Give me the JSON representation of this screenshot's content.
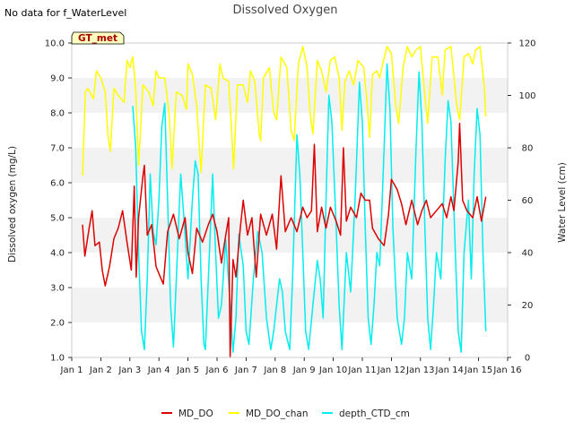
{
  "no_data_note": "No data for f_WaterLevel",
  "chart_data": {
    "type": "line",
    "title": "Dissolved Oxygen",
    "ylabel": "Dissolved oxygen (mg/L)",
    "y2label": "Water Level (cm)",
    "annotation": "GT_met",
    "xlim": [
      "Jan 1",
      "Jan 16"
    ],
    "x_ticks": [
      "Jan 1",
      "Jan 2",
      "Jan 3",
      "Jan 4",
      "Jan 5",
      "Jan 6",
      "Jan 7",
      "Jan 8",
      "Jan 9",
      "Jan 10",
      "Jan 11",
      "Jan 12",
      "Jan 13",
      "Jan 14",
      "Jan 15",
      "Jan 16"
    ],
    "ylim": [
      1.0,
      10.0
    ],
    "y_ticks": [
      "1.0",
      "2.0",
      "3.0",
      "4.0",
      "5.0",
      "6.0",
      "7.0",
      "8.0",
      "9.0",
      "10.0"
    ],
    "y2lim": [
      0,
      120
    ],
    "y2_ticks": [
      "0",
      "20",
      "40",
      "60",
      "80",
      "100",
      "120"
    ],
    "grid": "horizontal bands",
    "legend_position": "bottom",
    "colors": {
      "MD_DO": "#dd0000",
      "MD_DO_chan": "#ffff00",
      "depth_CTD_cm": "#00eeee"
    },
    "series": [
      {
        "name": "MD_DO",
        "axis": "left",
        "points": [
          [
            1.37,
            4.8
          ],
          [
            1.45,
            3.9
          ],
          [
            1.6,
            4.7
          ],
          [
            1.7,
            5.2
          ],
          [
            1.8,
            4.2
          ],
          [
            1.95,
            4.3
          ],
          [
            2.05,
            3.5
          ],
          [
            2.15,
            3.05
          ],
          [
            2.3,
            3.6
          ],
          [
            2.45,
            4.4
          ],
          [
            2.6,
            4.7
          ],
          [
            2.75,
            5.2
          ],
          [
            2.9,
            4.3
          ],
          [
            3.05,
            3.5
          ],
          [
            3.15,
            5.9
          ],
          [
            3.22,
            3.3
          ],
          [
            3.3,
            5.0
          ],
          [
            3.45,
            6.2
          ],
          [
            3.5,
            6.5
          ],
          [
            3.6,
            4.5
          ],
          [
            3.75,
            4.8
          ],
          [
            3.9,
            3.6
          ],
          [
            4.05,
            3.3
          ],
          [
            4.15,
            3.1
          ],
          [
            4.3,
            4.6
          ],
          [
            4.5,
            5.1
          ],
          [
            4.7,
            4.4
          ],
          [
            4.9,
            5.0
          ],
          [
            5.0,
            4.0
          ],
          [
            5.15,
            3.4
          ],
          [
            5.3,
            4.7
          ],
          [
            5.5,
            4.3
          ],
          [
            5.7,
            4.8
          ],
          [
            5.85,
            5.1
          ],
          [
            6.0,
            4.6
          ],
          [
            6.15,
            3.7
          ],
          [
            6.3,
            4.5
          ],
          [
            6.4,
            5.0
          ],
          [
            6.45,
            1.0
          ],
          [
            6.55,
            3.8
          ],
          [
            6.65,
            3.3
          ],
          [
            6.8,
            4.7
          ],
          [
            6.9,
            5.5
          ],
          [
            7.05,
            4.5
          ],
          [
            7.2,
            5.0
          ],
          [
            7.35,
            3.3
          ],
          [
            7.5,
            5.1
          ],
          [
            7.7,
            4.5
          ],
          [
            7.9,
            5.1
          ],
          [
            8.05,
            4.1
          ],
          [
            8.2,
            6.2
          ],
          [
            8.35,
            4.6
          ],
          [
            8.55,
            5.0
          ],
          [
            8.75,
            4.6
          ],
          [
            8.95,
            5.3
          ],
          [
            9.1,
            5.0
          ],
          [
            9.25,
            5.2
          ],
          [
            9.35,
            7.1
          ],
          [
            9.45,
            4.6
          ],
          [
            9.6,
            5.3
          ],
          [
            9.75,
            4.7
          ],
          [
            9.9,
            5.3
          ],
          [
            10.1,
            4.9
          ],
          [
            10.25,
            4.5
          ],
          [
            10.35,
            7.0
          ],
          [
            10.45,
            4.9
          ],
          [
            10.6,
            5.3
          ],
          [
            10.8,
            5.0
          ],
          [
            10.95,
            5.7
          ],
          [
            11.1,
            5.5
          ],
          [
            11.25,
            5.5
          ],
          [
            11.35,
            4.7
          ],
          [
            11.55,
            4.4
          ],
          [
            11.75,
            4.2
          ],
          [
            11.9,
            5.1
          ],
          [
            12.0,
            6.1
          ],
          [
            12.2,
            5.8
          ],
          [
            12.35,
            5.4
          ],
          [
            12.5,
            4.8
          ],
          [
            12.7,
            5.5
          ],
          [
            12.9,
            4.8
          ],
          [
            13.05,
            5.2
          ],
          [
            13.2,
            5.5
          ],
          [
            13.35,
            5.0
          ],
          [
            13.55,
            5.2
          ],
          [
            13.75,
            5.4
          ],
          [
            13.9,
            5.0
          ],
          [
            14.05,
            5.6
          ],
          [
            14.15,
            5.2
          ],
          [
            14.3,
            6.6
          ],
          [
            14.35,
            7.7
          ],
          [
            14.45,
            5.5
          ],
          [
            14.6,
            5.2
          ],
          [
            14.8,
            5.0
          ],
          [
            14.95,
            5.6
          ],
          [
            15.1,
            4.9
          ],
          [
            15.25,
            5.6
          ]
        ]
      },
      {
        "name": "MD_DO_chan",
        "axis": "left",
        "points": [
          [
            1.37,
            6.2
          ],
          [
            1.47,
            8.6
          ],
          [
            1.55,
            8.7
          ],
          [
            1.75,
            8.4
          ],
          [
            1.85,
            9.2
          ],
          [
            2.0,
            9.0
          ],
          [
            2.15,
            8.6
          ],
          [
            2.25,
            7.3
          ],
          [
            2.33,
            6.9
          ],
          [
            2.45,
            8.7
          ],
          [
            2.6,
            8.5
          ],
          [
            2.8,
            8.3
          ],
          [
            2.9,
            9.5
          ],
          [
            3.0,
            9.3
          ],
          [
            3.1,
            9.6
          ],
          [
            3.2,
            8.7
          ],
          [
            3.3,
            6.5
          ],
          [
            3.45,
            8.8
          ],
          [
            3.65,
            8.6
          ],
          [
            3.8,
            8.2
          ],
          [
            3.9,
            9.2
          ],
          [
            4.0,
            9.0
          ],
          [
            4.2,
            9.0
          ],
          [
            4.35,
            8.0
          ],
          [
            4.45,
            6.4
          ],
          [
            4.6,
            8.6
          ],
          [
            4.8,
            8.5
          ],
          [
            4.95,
            8.1
          ],
          [
            5.0,
            9.4
          ],
          [
            5.15,
            9.1
          ],
          [
            5.3,
            8.2
          ],
          [
            5.45,
            6.3
          ],
          [
            5.6,
            8.8
          ],
          [
            5.8,
            8.7
          ],
          [
            5.95,
            7.8
          ],
          [
            6.1,
            9.4
          ],
          [
            6.2,
            9.0
          ],
          [
            6.4,
            8.9
          ],
          [
            6.5,
            7.5
          ],
          [
            6.57,
            6.4
          ],
          [
            6.7,
            8.8
          ],
          [
            6.9,
            8.8
          ],
          [
            7.05,
            8.3
          ],
          [
            7.15,
            9.2
          ],
          [
            7.3,
            8.9
          ],
          [
            7.45,
            7.4
          ],
          [
            7.5,
            7.2
          ],
          [
            7.6,
            9.0
          ],
          [
            7.8,
            9.3
          ],
          [
            7.95,
            8.0
          ],
          [
            8.05,
            7.8
          ],
          [
            8.2,
            9.6
          ],
          [
            8.4,
            9.3
          ],
          [
            8.55,
            7.5
          ],
          [
            8.65,
            7.2
          ],
          [
            8.8,
            9.4
          ],
          [
            8.95,
            9.9
          ],
          [
            9.1,
            9.3
          ],
          [
            9.2,
            8.0
          ],
          [
            9.3,
            7.4
          ],
          [
            9.45,
            9.5
          ],
          [
            9.6,
            9.2
          ],
          [
            9.75,
            8.6
          ],
          [
            9.9,
            9.5
          ],
          [
            10.05,
            9.6
          ],
          [
            10.2,
            9.0
          ],
          [
            10.3,
            7.5
          ],
          [
            10.4,
            8.9
          ],
          [
            10.55,
            9.2
          ],
          [
            10.7,
            8.8
          ],
          [
            10.85,
            9.5
          ],
          [
            11.05,
            9.3
          ],
          [
            11.15,
            8.4
          ],
          [
            11.25,
            7.3
          ],
          [
            11.35,
            9.1
          ],
          [
            11.5,
            9.2
          ],
          [
            11.6,
            9.0
          ],
          [
            11.7,
            9.4
          ],
          [
            11.85,
            9.9
          ],
          [
            12.0,
            9.7
          ],
          [
            12.15,
            8.2
          ],
          [
            12.25,
            7.7
          ],
          [
            12.4,
            9.3
          ],
          [
            12.55,
            9.9
          ],
          [
            12.7,
            9.6
          ],
          [
            12.85,
            9.8
          ],
          [
            13.0,
            9.9
          ],
          [
            13.15,
            8.5
          ],
          [
            13.25,
            7.7
          ],
          [
            13.4,
            9.6
          ],
          [
            13.6,
            9.6
          ],
          [
            13.75,
            8.5
          ],
          [
            13.85,
            9.8
          ],
          [
            14.05,
            9.9
          ],
          [
            14.25,
            8.2
          ],
          [
            14.35,
            7.8
          ],
          [
            14.5,
            9.6
          ],
          [
            14.65,
            9.7
          ],
          [
            14.8,
            9.4
          ],
          [
            14.9,
            9.8
          ],
          [
            15.05,
            9.9
          ],
          [
            15.2,
            8.7
          ],
          [
            15.25,
            7.9
          ]
        ]
      },
      {
        "name": "depth_CTD_cm",
        "axis": "right",
        "points": [
          [
            3.1,
            96
          ],
          [
            3.2,
            80
          ],
          [
            3.3,
            40
          ],
          [
            3.4,
            10
          ],
          [
            3.5,
            3
          ],
          [
            3.6,
            30
          ],
          [
            3.7,
            70
          ],
          [
            3.8,
            48
          ],
          [
            3.9,
            43
          ],
          [
            4.0,
            60
          ],
          [
            4.1,
            88
          ],
          [
            4.2,
            97
          ],
          [
            4.3,
            60
          ],
          [
            4.4,
            20
          ],
          [
            4.5,
            4
          ],
          [
            4.6,
            30
          ],
          [
            4.75,
            70
          ],
          [
            4.85,
            55
          ],
          [
            5.0,
            30
          ],
          [
            5.15,
            60
          ],
          [
            5.25,
            75
          ],
          [
            5.35,
            70
          ],
          [
            5.45,
            30
          ],
          [
            5.55,
            5
          ],
          [
            5.6,
            3
          ],
          [
            5.7,
            30
          ],
          [
            5.85,
            70
          ],
          [
            5.95,
            40
          ],
          [
            6.05,
            15
          ],
          [
            6.15,
            20
          ],
          [
            6.3,
            45
          ],
          [
            6.45,
            20
          ],
          [
            6.55,
            2
          ],
          [
            6.65,
            15
          ],
          [
            6.75,
            47
          ],
          [
            6.9,
            35
          ],
          [
            7.0,
            10
          ],
          [
            7.1,
            5
          ],
          [
            7.25,
            30
          ],
          [
            7.4,
            48
          ],
          [
            7.55,
            40
          ],
          [
            7.7,
            15
          ],
          [
            7.85,
            3
          ],
          [
            7.95,
            10
          ],
          [
            8.05,
            20
          ],
          [
            8.15,
            30
          ],
          [
            8.25,
            25
          ],
          [
            8.35,
            10
          ],
          [
            8.5,
            3
          ],
          [
            8.6,
            30
          ],
          [
            8.75,
            85
          ],
          [
            8.85,
            70
          ],
          [
            8.95,
            40
          ],
          [
            9.05,
            10
          ],
          [
            9.15,
            3
          ],
          [
            9.3,
            20
          ],
          [
            9.45,
            37
          ],
          [
            9.55,
            30
          ],
          [
            9.65,
            15
          ],
          [
            9.75,
            60
          ],
          [
            9.85,
            100
          ],
          [
            9.95,
            90
          ],
          [
            10.1,
            50
          ],
          [
            10.2,
            20
          ],
          [
            10.3,
            3
          ],
          [
            10.45,
            40
          ],
          [
            10.6,
            25
          ],
          [
            10.75,
            60
          ],
          [
            10.9,
            105
          ],
          [
            11.0,
            90
          ],
          [
            11.1,
            50
          ],
          [
            11.2,
            15
          ],
          [
            11.3,
            5
          ],
          [
            11.4,
            20
          ],
          [
            11.5,
            40
          ],
          [
            11.6,
            35
          ],
          [
            11.75,
            80
          ],
          [
            11.85,
            112
          ],
          [
            11.95,
            95
          ],
          [
            12.05,
            50
          ],
          [
            12.2,
            15
          ],
          [
            12.35,
            5
          ],
          [
            12.45,
            15
          ],
          [
            12.55,
            40
          ],
          [
            12.7,
            30
          ],
          [
            12.85,
            80
          ],
          [
            12.95,
            109
          ],
          [
            13.05,
            90
          ],
          [
            13.15,
            50
          ],
          [
            13.25,
            15
          ],
          [
            13.35,
            3
          ],
          [
            13.45,
            20
          ],
          [
            13.55,
            40
          ],
          [
            13.7,
            30
          ],
          [
            13.85,
            75
          ],
          [
            13.95,
            98
          ],
          [
            14.05,
            90
          ],
          [
            14.2,
            40
          ],
          [
            14.3,
            10
          ],
          [
            14.4,
            2
          ],
          [
            14.5,
            40
          ],
          [
            14.65,
            60
          ],
          [
            14.75,
            30
          ],
          [
            14.85,
            70
          ],
          [
            14.95,
            95
          ],
          [
            15.05,
            85
          ],
          [
            15.15,
            40
          ],
          [
            15.25,
            10
          ]
        ]
      }
    ]
  }
}
